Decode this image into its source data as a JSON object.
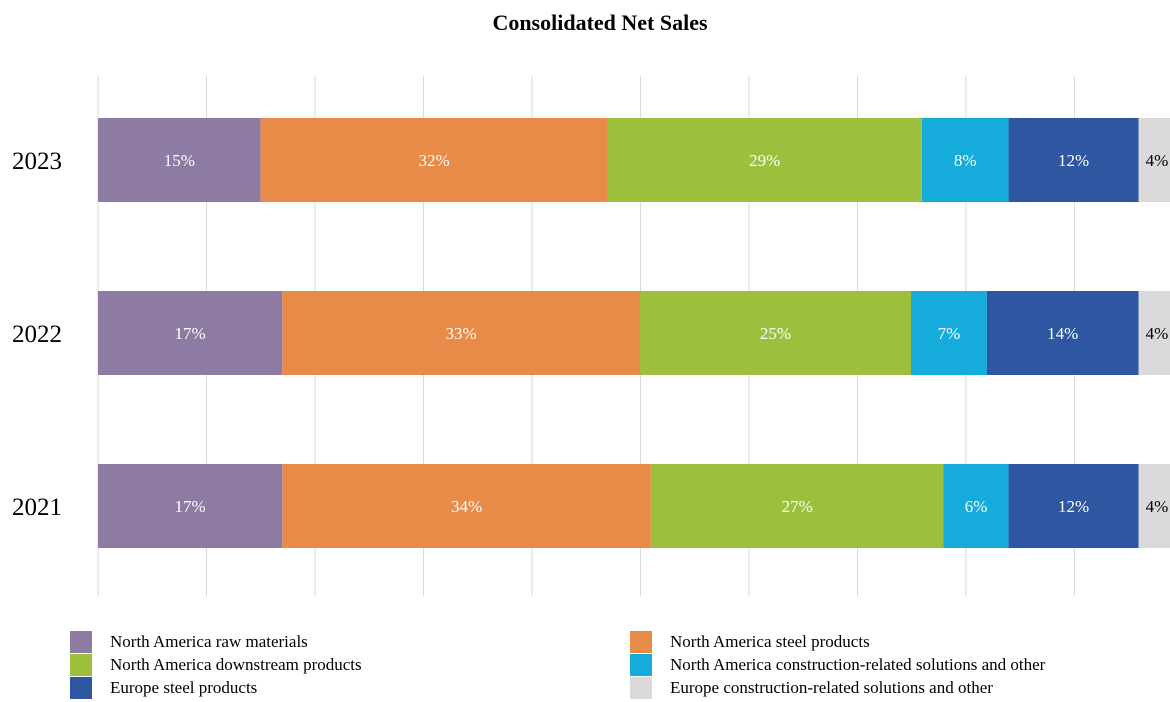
{
  "chart_data": {
    "type": "bar",
    "orientation": "horizontal",
    "stacked": true,
    "title": "Consolidated Net Sales",
    "xlabel": "",
    "ylabel": "",
    "xlim": [
      0,
      100
    ],
    "grid": true,
    "legend_position": "bottom",
    "categories": [
      "2023",
      "2022",
      "2021"
    ],
    "series": [
      {
        "name": "North America raw materials",
        "color": "#8e7ba3",
        "values": [
          15,
          17,
          17
        ],
        "labels": [
          "15%",
          "17%",
          "17%"
        ]
      },
      {
        "name": "North America steel products",
        "color": "#e88b48",
        "values": [
          32,
          33,
          34
        ],
        "labels": [
          "32%",
          "33%",
          "34%"
        ]
      },
      {
        "name": "North America downstream products",
        "color": "#9cc03e",
        "values": [
          29,
          25,
          27
        ],
        "labels": [
          "29%",
          "25%",
          "27%"
        ]
      },
      {
        "name": "North America construction-related solutions and other",
        "color": "#15acdc",
        "values": [
          8,
          7,
          6
        ],
        "labels": [
          "8%",
          "7%",
          "6%"
        ]
      },
      {
        "name": "Europe steel products",
        "color": "#2f56a0",
        "values": [
          12,
          14,
          12
        ],
        "labels": [
          "12%",
          "14%",
          "12%"
        ]
      },
      {
        "name": "Europe construction-related solutions and other",
        "color": "#dadada",
        "values": [
          4,
          4,
          4
        ],
        "labels": [
          "4%",
          "4%",
          "4%"
        ]
      }
    ]
  }
}
